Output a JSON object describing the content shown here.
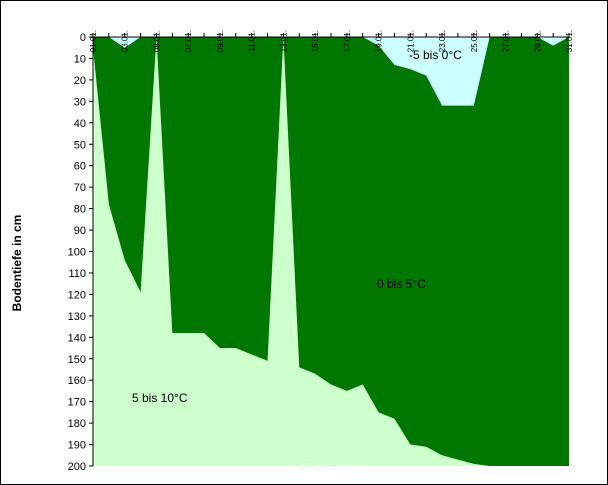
{
  "chart_data": {
    "type": "area",
    "title": "",
    "xlabel": "",
    "ylabel": "Bodentiefe in cm",
    "x_ticks": [
      "01.01.",
      "03.01.",
      "05.01.",
      "07.01.",
      "09.01.",
      "11.01.",
      "13.01.",
      "15.01.",
      "17.01.",
      "19.01.",
      "21.01.",
      "23.01.",
      "25.01.",
      "27.01.",
      "29.01.",
      "31.01."
    ],
    "y_ticks": [
      0,
      10,
      20,
      30,
      40,
      50,
      60,
      70,
      80,
      90,
      100,
      110,
      120,
      130,
      140,
      150,
      160,
      170,
      180,
      190,
      200
    ],
    "ylim": [
      0,
      200
    ],
    "y_inverted": true,
    "day_range": [
      1,
      31
    ],
    "series": [
      {
        "name": "-5 bis 0°C",
        "color": "#ccffff",
        "boundary": [
          [
            1,
            0
          ],
          [
            2,
            0
          ],
          [
            3,
            5
          ],
          [
            4,
            0
          ],
          [
            5,
            0
          ],
          [
            6,
            0
          ],
          [
            7,
            0
          ],
          [
            8,
            0
          ],
          [
            9,
            0
          ],
          [
            10,
            0
          ],
          [
            11,
            0
          ],
          [
            12,
            0
          ],
          [
            13,
            0
          ],
          [
            14,
            0
          ],
          [
            15,
            0
          ],
          [
            16,
            0
          ],
          [
            17,
            0
          ],
          [
            18,
            0
          ],
          [
            19,
            4
          ],
          [
            20,
            13
          ],
          [
            21,
            15
          ],
          [
            22,
            18
          ],
          [
            23,
            32
          ],
          [
            24,
            32
          ],
          [
            25,
            32
          ],
          [
            26,
            0
          ],
          [
            27,
            0
          ],
          [
            28,
            0
          ],
          [
            29,
            0
          ],
          [
            30,
            4
          ],
          [
            31,
            0
          ]
        ]
      },
      {
        "name": "0 bis 5°C",
        "color": "#007700",
        "boundary": [
          [
            1,
            5
          ],
          [
            2,
            78
          ],
          [
            3,
            104
          ],
          [
            4,
            119
          ],
          [
            5,
            0
          ],
          [
            6,
            138
          ],
          [
            7,
            138
          ],
          [
            8,
            138
          ],
          [
            9,
            145
          ],
          [
            10,
            145
          ],
          [
            11,
            148
          ],
          [
            12,
            151
          ],
          [
            13,
            0
          ],
          [
            14,
            154
          ],
          [
            15,
            157
          ],
          [
            16,
            162
          ],
          [
            17,
            165
          ],
          [
            18,
            162
          ],
          [
            19,
            175
          ],
          [
            20,
            178
          ],
          [
            21,
            190
          ],
          [
            22,
            191
          ],
          [
            23,
            195
          ],
          [
            24,
            197
          ],
          [
            25,
            199
          ],
          [
            26,
            200
          ],
          [
            27,
            200
          ],
          [
            28,
            200
          ],
          [
            29,
            200
          ],
          [
            30,
            200
          ],
          [
            31,
            200
          ]
        ]
      },
      {
        "name": "5 bis 10°C",
        "color": "#ccffcc"
      }
    ],
    "labels": {
      "frost": "-5 bis 0°C",
      "cool": "0 bis 5°C",
      "warm": "5 bis 10°C",
      "watermark": "Wetter 2007"
    }
  }
}
